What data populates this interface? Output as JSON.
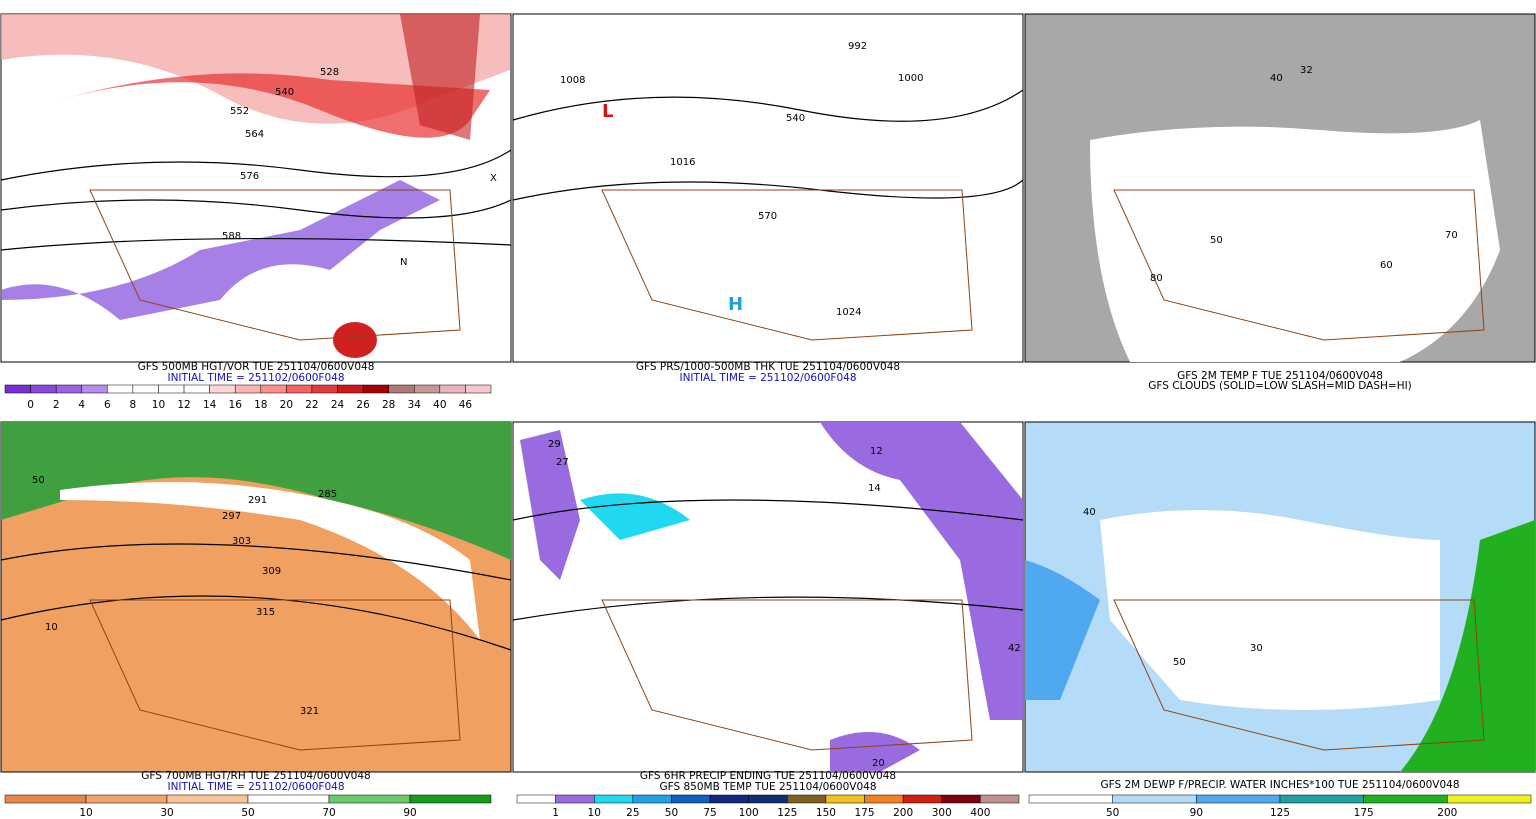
{
  "panels": [
    {
      "captions": [
        "GFS 500MB HGT/VOR TUE 251104/0600V048",
        "INITIAL TIME = 251102/0600F048"
      ],
      "colorbar": {
        "labels": [
          "0",
          "2",
          "4",
          "6",
          "8",
          "10",
          "12",
          "14",
          "16",
          "18",
          "20",
          "22",
          "24",
          "26",
          "28",
          "34",
          "40",
          "46"
        ],
        "colors": [
          "#7a2ed6",
          "#8a48e0",
          "#9b63e6",
          "#b48cec",
          "#ffffff",
          "#ffffff",
          "#ffffff",
          "#ffffff",
          "#ffd6d6",
          "#ffb4b4",
          "#ff8e8e",
          "#f46464",
          "#e43c3c",
          "#d01818",
          "#a80000",
          "#b07878",
          "#c89898",
          "#e8b4c0",
          "#f4c8d0"
        ]
      },
      "map_labels": [
        "528",
        "540",
        "552",
        "564",
        "576",
        "588",
        "N",
        "X"
      ]
    },
    {
      "captions": [
        "GFS PRS/1000-500MB THK TUE 251104/0600V048",
        "INITIAL TIME = 251102/0600F048"
      ],
      "map_labels": [
        "L",
        "H",
        "1000",
        "1008",
        "1016",
        "1024",
        "540",
        "570",
        "992"
      ]
    },
    {
      "captions": [
        "GFS 2M TEMP F TUE 251104/0600V048",
        "GFS CLOUDS (SOLID=LOW SLASH=MID DASH=HI)"
      ],
      "map_labels": [
        "32",
        "40",
        "50",
        "60",
        "70",
        "80"
      ]
    },
    {
      "captions": [
        "GFS 700MB HGT/RH TUE 251104/0600V048",
        "INITIAL TIME = 251102/0600F048"
      ],
      "colorbar": {
        "labels": [
          "10",
          "30",
          "50",
          "70",
          "90"
        ],
        "colors": [
          "#e8874a",
          "#f0a468",
          "#f8c49a",
          "#ffffff",
          "#6cc86c",
          "#1a9a1a"
        ]
      },
      "map_labels": [
        "285",
        "291",
        "297",
        "303",
        "309",
        "315",
        "321",
        "10",
        "50"
      ]
    },
    {
      "captions": [
        "GFS 6HR PRECIP ENDING TUE 251104/0600V048",
        "GFS 850MB TEMP TUE 251104/0600V048"
      ],
      "colorbar": {
        "labels": [
          "1",
          "10",
          "25",
          "50",
          "75",
          "100",
          "125",
          "150",
          "175",
          "200",
          "300",
          "400"
        ],
        "colors": [
          "#ffffff",
          "#9a6ae0",
          "#20d8f0",
          "#20a0e8",
          "#1060c0",
          "#102880",
          "#103070",
          "#806020",
          "#f0c020",
          "#f08020",
          "#d02010",
          "#800010",
          "#c09090"
        ]
      },
      "map_labels": [
        "12",
        "14",
        "20",
        "27",
        "29",
        "42"
      ]
    },
    {
      "captions": [
        "GFS 2M DEWP F/PRECIP. WATER INCHES*100 TUE 251104/0600V048"
      ],
      "colorbar": {
        "labels": [
          "50",
          "90",
          "125",
          "175",
          "200"
        ],
        "colors": [
          "#ffffff",
          "#b4dcf8",
          "#50a8f0",
          "#20a0a0",
          "#20b020",
          "#f0f020"
        ]
      },
      "map_labels": [
        "30",
        "40",
        "50"
      ]
    }
  ]
}
